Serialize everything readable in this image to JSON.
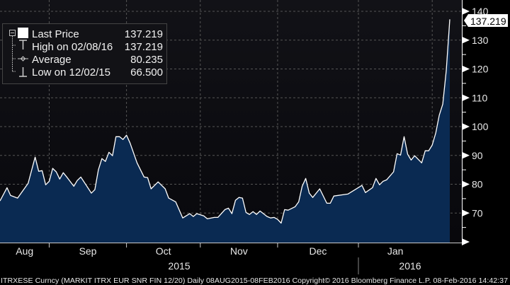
{
  "chart_data": {
    "type": "area",
    "ticker": "ITRXESE Curncy (MARKIT ITRX EUR SNR FIN 12/20)",
    "footer": "ITRXESE Curncy (MARKIT ITRX EUR SNR FIN 12/20)  Daily 08AUG2015-08FEB2016 Copyright© 2016 Bloomberg Finance L.P. 08-Feb-2016 14:42:37",
    "ylim": [
      60,
      140
    ],
    "yaxis_position": "right",
    "y_ticks": [
      "70",
      "80",
      "90",
      "100",
      "110",
      "120",
      "130",
      "140"
    ],
    "month_labels": [
      {
        "label": "Aug",
        "month": "2015-08"
      },
      {
        "label": "Sep",
        "month": "2015-09"
      },
      {
        "label": "Oct",
        "month": "2015-10"
      },
      {
        "label": "Nov",
        "month": "2015-11"
      },
      {
        "label": "Dec",
        "month": "2015-12"
      },
      {
        "label": "Jan",
        "month": "2016-01"
      }
    ],
    "year_labels": [
      {
        "label": "2015",
        "from": "2015-08",
        "to": "2015-12"
      },
      {
        "label": "2016",
        "from": "2016-01",
        "to": "2016-02"
      }
    ],
    "grid": true,
    "colors": {
      "fill": "#0a2a52",
      "line": "#ffffff",
      "background": "#0b0b10",
      "last_price_label_bg": "#ffffff"
    },
    "last_price_label": "137.219",
    "legend": {
      "placement": "top-left",
      "items": [
        {
          "icon": "white-square-icon",
          "label": "Last Price",
          "value": "137.219"
        },
        {
          "icon": "high-marker-icon",
          "label": "High on 02/08/16",
          "value": "137.219"
        },
        {
          "icon": "average-marker-icon",
          "label": "Average",
          "value": "80.235"
        },
        {
          "icon": "low-marker-icon",
          "label": "Low on 12/02/15",
          "value": "66.500"
        }
      ]
    },
    "series": [
      {
        "points": [
          [
            "2015-08-12",
            74.2
          ],
          [
            "2015-08-14",
            78.8
          ],
          [
            "2015-08-17",
            76.1
          ],
          [
            "2015-08-19",
            75.2
          ],
          [
            "2015-08-20",
            76.9
          ],
          [
            "2015-08-24",
            80.3
          ],
          [
            "2015-08-26",
            89.4
          ],
          [
            "2015-08-27",
            84.5
          ],
          [
            "2015-08-28",
            84.7
          ],
          [
            "2015-08-31",
            79.8
          ],
          [
            "2015-09-01",
            81.0
          ],
          [
            "2015-09-02",
            85.5
          ],
          [
            "2015-09-03",
            84.3
          ],
          [
            "2015-09-04",
            81.8
          ],
          [
            "2015-09-07",
            84.0
          ],
          [
            "2015-09-08",
            82.5
          ],
          [
            "2015-09-10",
            79.3
          ],
          [
            "2015-09-11",
            81.3
          ],
          [
            "2015-09-14",
            82.5
          ],
          [
            "2015-09-17",
            76.9
          ],
          [
            "2015-09-18",
            78.1
          ],
          [
            "2015-09-21",
            85.0
          ],
          [
            "2015-09-22",
            88.9
          ],
          [
            "2015-09-23",
            87.9
          ],
          [
            "2015-09-24",
            91.1
          ],
          [
            "2015-09-25",
            89.9
          ],
          [
            "2015-09-28",
            96.5
          ],
          [
            "2015-09-29",
            96.5
          ],
          [
            "2015-09-30",
            95.5
          ],
          [
            "2015-10-01",
            97.0
          ],
          [
            "2015-10-02",
            94.3
          ],
          [
            "2015-10-06",
            87.4
          ],
          [
            "2015-10-08",
            82.5
          ],
          [
            "2015-10-09",
            82.3
          ],
          [
            "2015-10-12",
            78.4
          ],
          [
            "2015-10-14",
            80.8
          ],
          [
            "2015-10-16",
            78.4
          ],
          [
            "2015-10-19",
            75.2
          ],
          [
            "2015-10-21",
            73.9
          ],
          [
            "2015-10-23",
            68.3
          ],
          [
            "2015-10-27",
            69.8
          ],
          [
            "2015-10-28",
            68.8
          ],
          [
            "2015-10-29",
            69.8
          ],
          [
            "2015-11-02",
            69.0
          ],
          [
            "2015-11-03",
            68.0
          ],
          [
            "2015-11-05",
            68.5
          ],
          [
            "2015-11-06",
            68.5
          ],
          [
            "2015-11-10",
            71.2
          ],
          [
            "2015-11-11",
            71.7
          ],
          [
            "2015-11-12",
            69.8
          ],
          [
            "2015-11-13",
            74.4
          ],
          [
            "2015-11-16",
            75.4
          ],
          [
            "2015-11-17",
            75.2
          ],
          [
            "2015-11-18",
            70.2
          ],
          [
            "2015-11-19",
            69.5
          ],
          [
            "2015-11-20",
            70.5
          ],
          [
            "2015-11-23",
            69.5
          ],
          [
            "2015-11-24",
            70.7
          ],
          [
            "2015-11-26",
            68.8
          ],
          [
            "2015-11-27",
            68.3
          ],
          [
            "2015-11-30",
            68.5
          ],
          [
            "2015-12-01",
            67.8
          ],
          [
            "2015-12-02",
            66.5
          ],
          [
            "2015-12-03",
            71.2
          ],
          [
            "2015-12-04",
            71.0
          ],
          [
            "2015-12-08",
            72.2
          ],
          [
            "2015-12-09",
            73.9
          ],
          [
            "2015-12-10",
            79.3
          ],
          [
            "2015-12-11",
            82.0
          ],
          [
            "2015-12-14",
            76.9
          ],
          [
            "2015-12-15",
            75.4
          ],
          [
            "2015-12-17",
            78.4
          ],
          [
            "2015-12-21",
            73.4
          ],
          [
            "2015-12-22",
            73.4
          ],
          [
            "2015-12-23",
            75.9
          ],
          [
            "2015-12-29",
            76.6
          ],
          [
            "2016-01-04",
            79.6
          ],
          [
            "2016-01-05",
            77.1
          ],
          [
            "2016-01-07",
            78.8
          ],
          [
            "2016-01-08",
            82.0
          ],
          [
            "2016-01-11",
            79.8
          ],
          [
            "2016-01-12",
            81.0
          ],
          [
            "2016-01-13",
            81.5
          ],
          [
            "2016-01-15",
            84.3
          ],
          [
            "2016-01-18",
            90.6
          ],
          [
            "2016-01-19",
            90.1
          ],
          [
            "2016-01-20",
            96.5
          ],
          [
            "2016-01-21",
            90.4
          ],
          [
            "2016-01-22",
            88.4
          ],
          [
            "2016-01-25",
            89.9
          ],
          [
            "2016-01-27",
            87.4
          ],
          [
            "2016-01-28",
            91.6
          ],
          [
            "2016-01-29",
            91.6
          ],
          [
            "2016-02-01",
            93.6
          ],
          [
            "2016-02-02",
            97.8
          ],
          [
            "2016-02-03",
            103.9
          ],
          [
            "2016-02-04",
            107.8
          ],
          [
            "2016-02-05",
            119.4
          ],
          [
            "2016-02-08",
            137.219
          ]
        ]
      }
    ]
  }
}
